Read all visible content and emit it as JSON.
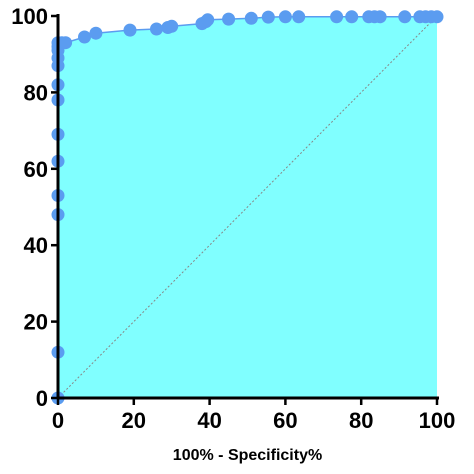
{
  "chart_data": {
    "type": "area",
    "title": "",
    "xlabel": "100% - Specificity%",
    "ylabel": "",
    "xlim": [
      0,
      100
    ],
    "ylim": [
      0,
      100
    ],
    "xticks": [
      0,
      20,
      40,
      60,
      80,
      100
    ],
    "yticks": [
      0,
      20,
      40,
      60,
      80,
      100
    ],
    "grid": false,
    "reference_line": {
      "from": [
        0,
        0
      ],
      "to": [
        100,
        100
      ],
      "style": "dotted"
    },
    "colors": {
      "fill": "#80ffff",
      "marker": "#5b9cf0",
      "line": "#5b9cf0",
      "axis": "#000000",
      "reference": "#888888"
    },
    "series": [
      {
        "points": [
          [
            0,
            0
          ],
          [
            0,
            12
          ],
          [
            0,
            48
          ],
          [
            0,
            53
          ],
          [
            0,
            62
          ],
          [
            0,
            69
          ],
          [
            0,
            78
          ],
          [
            0,
            82
          ],
          [
            0,
            87
          ],
          [
            0,
            89
          ],
          [
            0,
            91
          ],
          [
            0,
            92
          ],
          [
            0,
            93
          ],
          [
            1,
            93
          ],
          [
            2,
            93
          ],
          [
            7,
            94.5
          ],
          [
            10,
            95.5
          ],
          [
            19,
            96.3
          ],
          [
            26,
            96.6
          ],
          [
            29,
            97
          ],
          [
            30,
            97.3
          ],
          [
            38,
            98
          ],
          [
            39,
            98.5
          ],
          [
            39.5,
            99
          ],
          [
            45,
            99.2
          ],
          [
            51,
            99.4
          ],
          [
            55.5,
            99.7
          ],
          [
            60,
            99.8
          ],
          [
            63.5,
            99.8
          ],
          [
            73.5,
            99.8
          ],
          [
            77.5,
            99.8
          ],
          [
            82,
            99.8
          ],
          [
            83.5,
            99.8
          ],
          [
            85,
            99.8
          ],
          [
            91.5,
            99.8
          ],
          [
            95.5,
            99.8
          ],
          [
            97,
            99.8
          ],
          [
            98.5,
            99.8
          ],
          [
            100,
            99.8
          ]
        ]
      }
    ]
  }
}
